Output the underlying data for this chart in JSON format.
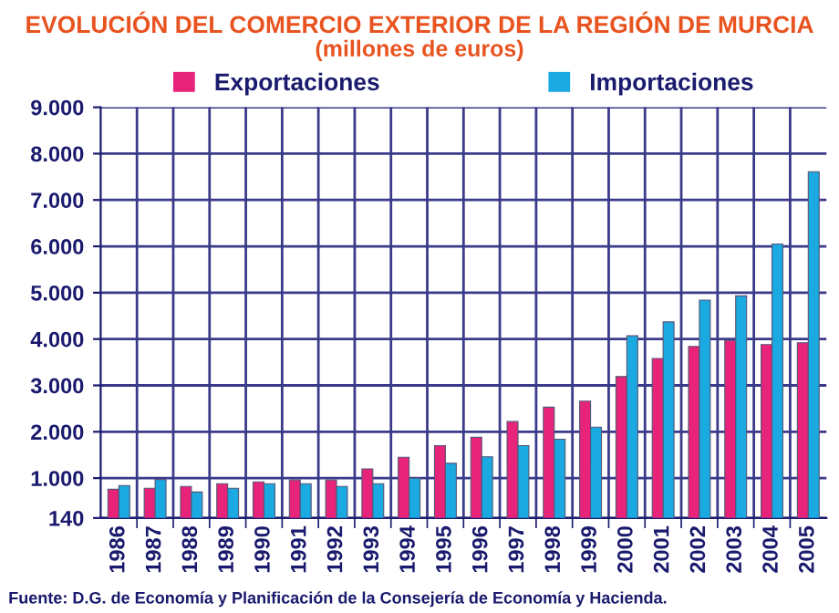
{
  "chart_data": {
    "type": "bar",
    "title": "EVOLUCIÓN DEL COMERCIO EXTERIOR DE LA REGIÓN DE MURCIA",
    "subtitle": "(millones de euros)",
    "categories": [
      "1986",
      "1987",
      "1988",
      "1989",
      "1990",
      "1991",
      "1992",
      "1993",
      "1994",
      "1995",
      "1996",
      "1997",
      "1998",
      "1999",
      "2000",
      "2001",
      "2002",
      "2003",
      "2004",
      "2005"
    ],
    "series": [
      {
        "name": "Exportaciones",
        "color": "#e8247a",
        "values": [
          760,
          780,
          820,
          880,
          920,
          960,
          960,
          1200,
          1450,
          1700,
          1880,
          2220,
          2530,
          2660,
          3190,
          3580,
          3840,
          3970,
          3880,
          3920
        ]
      },
      {
        "name": "Importaciones",
        "color": "#1aa9e0",
        "values": [
          840,
          970,
          700,
          780,
          880,
          880,
          820,
          880,
          1000,
          1320,
          1460,
          1700,
          1840,
          2100,
          4070,
          4370,
          4840,
          4930,
          6050,
          7610
        ]
      }
    ],
    "ylim": [
      140,
      9000
    ],
    "yticks": [
      140,
      {
        "value": 1000,
        "label": "1.000"
      },
      {
        "value": 2000,
        "label": "2.000"
      },
      {
        "value": 3000,
        "label": "3.000"
      },
      {
        "value": 4000,
        "label": "4.000"
      },
      {
        "value": 5000,
        "label": "5.000"
      },
      {
        "value": 6000,
        "label": "6.000"
      },
      {
        "value": 7000,
        "label": "7.000"
      },
      {
        "value": 8000,
        "label": "8.000"
      },
      {
        "value": 9000,
        "label": "9.000"
      }
    ],
    "grid": true,
    "legend": "top",
    "annotations": [
      "Fuente: D.G. de Economía y Planificación de la Consejería de Economía y Hacienda."
    ]
  }
}
